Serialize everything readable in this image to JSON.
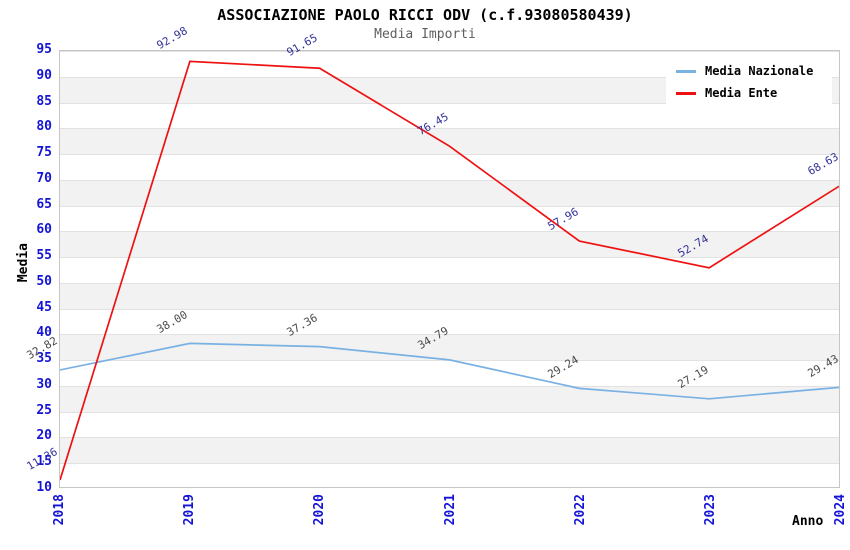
{
  "header": {
    "title": "ASSOCIAZIONE PAOLO RICCI ODV (c.f.93080580439)",
    "subtitle": "Media Importi"
  },
  "chart_data": {
    "type": "line",
    "categories": [
      "2018",
      "2019",
      "2020",
      "2021",
      "2022",
      "2023",
      "2024"
    ],
    "series": [
      {
        "name": "Media Nazionale",
        "color": "#7ab1e3",
        "label_color": "#4a4a4a",
        "values": [
          32.82,
          38.0,
          37.36,
          34.79,
          29.24,
          27.19,
          29.43
        ]
      },
      {
        "name": "Media Ente",
        "color": "#ee1111",
        "label_color": "#333399",
        "values": [
          11.36,
          92.98,
          91.65,
          76.45,
          57.96,
          52.74,
          68.63
        ]
      }
    ],
    "title": "ASSOCIAZIONE PAOLO RICCI ODV (c.f.93080580439)",
    "subtitle": "Media Importi",
    "xlabel": "Anno",
    "ylabel": "Media",
    "ylim": [
      10,
      95
    ],
    "ytick_step": 5,
    "grid": "banded-horizontal",
    "legend_position": "top-right",
    "tick_color": "#1414d6",
    "band_color": "#f2f2f2"
  }
}
